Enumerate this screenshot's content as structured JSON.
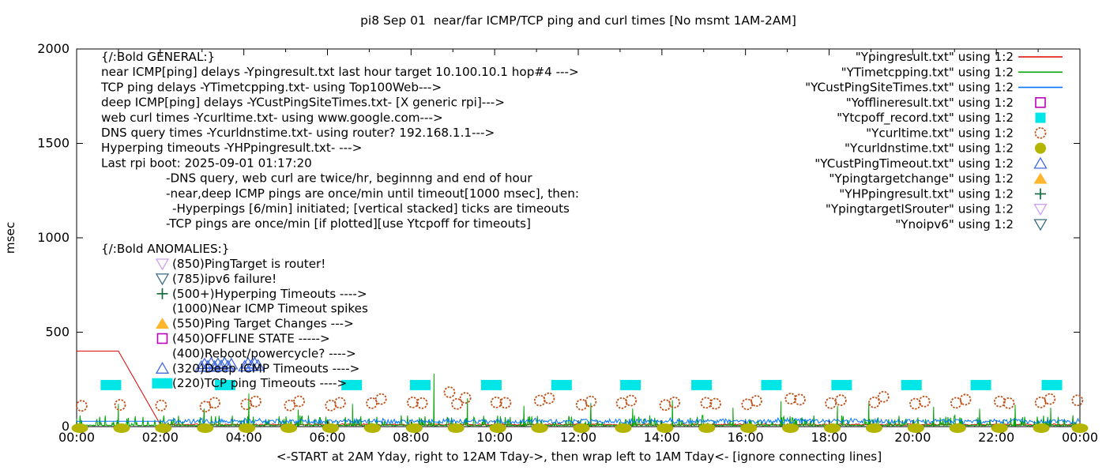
{
  "title": "pi8 Sep 01  near/far ICMP/TCP ping and curl times [No msmt 1AM-2AM]",
  "xlabel": "<-START at 2AM Yday, right to 12AM Tday->, then wrap left to 1AM Tday<- [ignore connecting lines]",
  "ylabel": "msec",
  "chart_data": {
    "type": "line+scatter",
    "x_unit": "hour-of-day",
    "xlim": [
      0,
      24
    ],
    "ylim": [
      0,
      2000
    ],
    "x_tick_labels": [
      "00:00",
      "02:00",
      "04:00",
      "06:00",
      "08:00",
      "10:00",
      "12:00",
      "14:00",
      "16:00",
      "18:00",
      "20:00",
      "22:00",
      "00:00"
    ],
    "x_minor_tick_every_hours": 1,
    "y_ticks": [
      0,
      500,
      1000,
      1500,
      2000
    ],
    "grid": false,
    "legend_position": "top-right-inside",
    "legend": [
      {
        "label": "\"Ypingresult.txt\" using 1:2",
        "style": "line",
        "color": "#e00000"
      },
      {
        "label": "\"YTimetcpping.txt\" using 1:2",
        "style": "line",
        "color": "#00a400"
      },
      {
        "label": "\"YCustPingSiteTimes.txt\" using 1:2",
        "style": "line",
        "color": "#0074ff"
      },
      {
        "label": "\"Yofflineresult.txt\" using 1:2",
        "style": "open-square",
        "color": "#bd00bd"
      },
      {
        "label": "\"Ytcpoff_record.txt\" using 1:2",
        "style": "filled-square",
        "color": "#00e5e5"
      },
      {
        "label": "\"Ycurltime.txt\" using 1:2",
        "style": "open-circle",
        "color": "#c05018"
      },
      {
        "label": "\"Ycurldnstime.txt\" using 1:2",
        "style": "filled-circle",
        "color": "#b3b500"
      },
      {
        "label": "\"YCustPingTimeout.txt\" using 1:2",
        "style": "open-triangle-up",
        "color": "#4169e1"
      },
      {
        "label": "\"Ypingtargetchange\" using 1:2",
        "style": "filled-triangle-up",
        "color": "#ffb62e"
      },
      {
        "label": "\"YHPpingresult.txt\" using 1:2",
        "style": "plus",
        "color": "#156b3f"
      },
      {
        "label": "\"YpingtargetISrouter\" using 1:2",
        "style": "open-triangle-down",
        "color": "#cfa0f2"
      },
      {
        "label": "\"Ynoipv6\" using 1:2",
        "style": "open-triangle-down",
        "color": "#3a6a85"
      }
    ],
    "series": {
      "ypingresult": {
        "name": "Ypingresult.txt",
        "style": "line",
        "color": "#e00000",
        "head_points": [
          [
            0,
            400
          ],
          [
            1,
            400
          ],
          [
            2,
            12
          ]
        ],
        "tail_noise": {
          "from": 2,
          "to": 24,
          "step": 0.0333,
          "baseline": 7,
          "amplitude": 8,
          "seed": 11
        }
      },
      "ytimetcpping": {
        "name": "YTimetcpping.txt",
        "style": "line",
        "color": "#00a400",
        "noise": {
          "from": 0,
          "to": 24,
          "step": 0.0167,
          "baseline": 4,
          "amplitude": 5,
          "spike_probability": 0.14,
          "spike_min": 12,
          "spike_max": 60,
          "seed": 23
        },
        "tall_spikes": [
          [
            1.0,
            120
          ],
          [
            3.05,
            95
          ],
          [
            4.12,
            175
          ],
          [
            5.3,
            90
          ],
          [
            6.6,
            120
          ],
          [
            8.55,
            280
          ],
          [
            9.35,
            150
          ],
          [
            10.7,
            110
          ],
          [
            12.3,
            125
          ],
          [
            13.3,
            95
          ],
          [
            14.25,
            140
          ],
          [
            15.7,
            100
          ],
          [
            16.85,
            135
          ],
          [
            18.2,
            110
          ],
          [
            18.95,
            125
          ],
          [
            20.5,
            105
          ],
          [
            21.6,
            95
          ],
          [
            22.45,
            115
          ],
          [
            23.3,
            100
          ]
        ]
      },
      "ycustpingsitetimes": {
        "name": "YCustPingSiteTimes.txt",
        "style": "line",
        "color": "#0074ff",
        "flat_segment": {
          "from": 0,
          "to": 2,
          "value": 28
        },
        "noise": {
          "from": 2,
          "to": 24,
          "step": 0.025,
          "baseline": 16,
          "amplitude": 24,
          "spike_probability": 0.06,
          "spike_min": 20,
          "spike_max": 45,
          "seed": 47
        }
      },
      "ytcpoff_record": {
        "name": "Ytcpoff_record.txt",
        "style": "filled-square",
        "color": "#00e5e5",
        "msec": 220,
        "hours": [
          0.82,
          3.55,
          6.58,
          8.22,
          9.92,
          11.6,
          13.25,
          14.95,
          16.62,
          18.3,
          19.97,
          21.63,
          23.33
        ]
      },
      "ycurltime": {
        "name": "Ycurltime.txt",
        "style": "open-circle",
        "color": "#c05018",
        "points": [
          [
            0.12,
            110
          ],
          [
            1.04,
            115
          ],
          [
            2.02,
            112
          ],
          [
            3.08,
            106
          ],
          [
            3.3,
            126
          ],
          [
            4.06,
            118
          ],
          [
            4.28,
            133
          ],
          [
            5.1,
            112
          ],
          [
            5.32,
            134
          ],
          [
            6.08,
            112
          ],
          [
            6.3,
            126
          ],
          [
            7.06,
            124
          ],
          [
            7.28,
            146
          ],
          [
            8.04,
            128
          ],
          [
            8.26,
            124
          ],
          [
            8.92,
            182
          ],
          [
            9.1,
            120
          ],
          [
            9.3,
            152
          ],
          [
            10.04,
            128
          ],
          [
            10.26,
            126
          ],
          [
            11.08,
            138
          ],
          [
            11.3,
            150
          ],
          [
            12.08,
            116
          ],
          [
            12.3,
            133
          ],
          [
            13.04,
            124
          ],
          [
            13.26,
            138
          ],
          [
            14.08,
            114
          ],
          [
            14.3,
            128
          ],
          [
            15.06,
            126
          ],
          [
            15.28,
            121
          ],
          [
            16.04,
            118
          ],
          [
            16.26,
            136
          ],
          [
            17.08,
            148
          ],
          [
            17.3,
            143
          ],
          [
            18.04,
            124
          ],
          [
            18.28,
            140
          ],
          [
            19.08,
            128
          ],
          [
            19.3,
            158
          ],
          [
            20.06,
            121
          ],
          [
            20.28,
            133
          ],
          [
            21.04,
            126
          ],
          [
            21.26,
            143
          ],
          [
            22.08,
            133
          ],
          [
            22.3,
            124
          ],
          [
            23.06,
            128
          ],
          [
            23.28,
            146
          ],
          [
            23.94,
            139
          ]
        ]
      },
      "ycurldnstime": {
        "name": "Ycurldnstime.txt",
        "style": "filled-ellipse",
        "color": "#b3b500",
        "msec": 0,
        "hours": [
          0,
          1,
          2,
          3,
          4,
          5,
          6,
          7,
          8,
          9,
          10,
          11,
          12,
          13,
          14,
          15,
          16,
          17,
          18,
          19,
          20,
          21,
          22,
          23,
          24
        ]
      },
      "ycustpingtimeout": {
        "name": "YCustPingTimeout.txt",
        "style": "open-triangle-up",
        "color": "#4169e1",
        "points": [
          [
            2.98,
            318
          ],
          [
            3.06,
            332
          ],
          [
            3.14,
            320
          ],
          [
            3.22,
            336
          ],
          [
            3.3,
            318
          ],
          [
            3.38,
            333
          ],
          [
            3.46,
            322
          ],
          [
            3.54,
            337
          ],
          [
            3.62,
            320
          ],
          [
            3.7,
            331
          ],
          [
            4.02,
            320
          ],
          [
            4.1,
            335
          ],
          [
            4.18,
            322
          ],
          [
            4.26,
            336
          ],
          [
            4.34,
            324
          ]
        ]
      }
    },
    "anomaly_marker_hour": 2.05
  },
  "annotations": {
    "general": {
      "header": "{/:Bold GENERAL:}",
      "lines": [
        {
          "indent": 0,
          "text": "near ICMP[ping] delays -Ypingresult.txt last hour target 10.100.10.1 hop#4 --->"
        },
        {
          "indent": 0,
          "text": "TCP ping delays -YTimetcpping.txt- using Top100Web--->"
        },
        {
          "indent": 0,
          "text": "deep ICMP[ping] delays -YCustPingSiteTimes.txt- [X generic rpi]--->"
        },
        {
          "indent": 0,
          "text": "web curl times -Ycurltime.txt- using www.google.com--->"
        },
        {
          "indent": 0,
          "text": "DNS query times -Ycurldnstime.txt- using router? 192.168.1.1--->"
        },
        {
          "indent": 0,
          "text": "Hyperping timeouts -YHPpingresult.txt- --->"
        },
        {
          "indent": 0,
          "text": "Last rpi boot: 2025-09-01 01:17:20"
        },
        {
          "indent": 1,
          "text": "-DNS query, web curl are twice/hr, beginnng and end of hour"
        },
        {
          "indent": 1,
          "text": "-near,deep ICMP pings are once/min until timeout[1000 msec], then:"
        },
        {
          "indent": 2,
          "text": "-Hyperpings [6/min] initiated; [vertical stacked] ticks are timeouts"
        },
        {
          "indent": 1,
          "text": "-TCP pings are once/min [if plotted][use Ytcpoff for timeouts]"
        }
      ]
    },
    "anomalies": {
      "header": "{/:Bold ANOMALIES:}",
      "rows": [
        {
          "marker": "open-triangle-down",
          "marker_color": "#cfa0f2",
          "text": "(850)PingTarget is router!"
        },
        {
          "marker": "open-triangle-down",
          "marker_color": "#3a6a85",
          "text": "(785)ipv6 failure!"
        },
        {
          "marker": "plus",
          "marker_color": "#156b3f",
          "text": "(500+)Hyperping Timeouts ---->"
        },
        {
          "marker": "none",
          "marker_color": "",
          "text": "(1000)Near ICMP Timeout spikes"
        },
        {
          "marker": "filled-triangle-up",
          "marker_color": "#ffb62e",
          "text": "(550)Ping Target Changes --->"
        },
        {
          "marker": "open-square",
          "marker_color": "#bd00bd",
          "text": "(450)OFFLINE STATE ----->"
        },
        {
          "marker": "none",
          "marker_color": "",
          "text": "(400)Reboot/powercycle? ---->"
        },
        {
          "marker": "open-triangle-up",
          "marker_color": "#4169e1",
          "text": "(320)Deep ICMP Timeouts ---->"
        },
        {
          "marker": "filled-square",
          "marker_color": "#00e5e5",
          "text": "(220)TCP ping Timeouts ---->"
        }
      ]
    }
  }
}
